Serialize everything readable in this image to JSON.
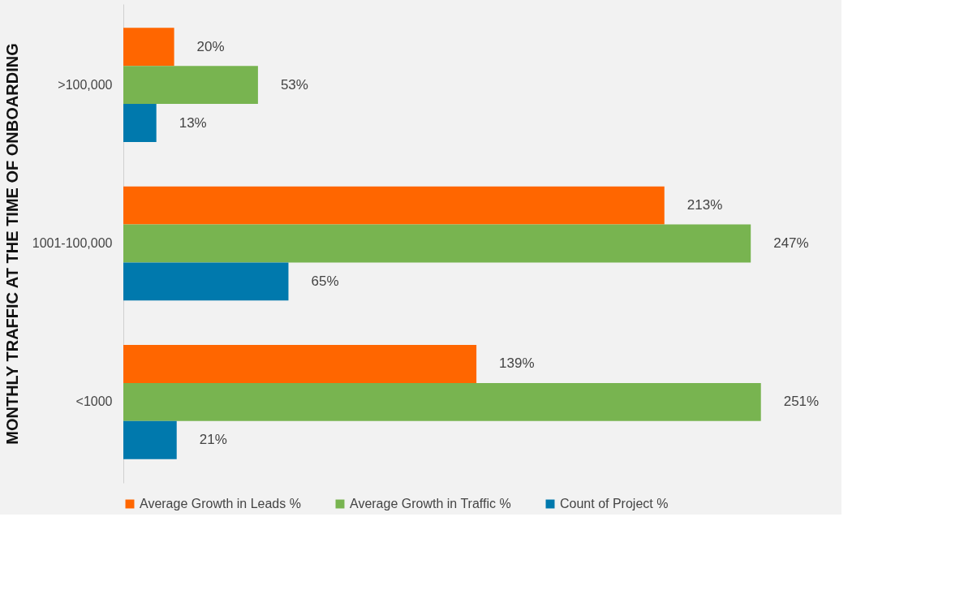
{
  "chart_data": {
    "type": "bar",
    "orientation": "horizontal",
    "ylabel": "MONTHLY TRAFFIC AT THE TIME OF ONBOARDING",
    "categories": [
      ">100,000",
      "1001-100,000",
      "<1000"
    ],
    "series": [
      {
        "name": "Average Growth in Leads %",
        "color": "#ff6600",
        "values": [
          20,
          213,
          139
        ],
        "value_labels": [
          "20%",
          "213%",
          "139%"
        ]
      },
      {
        "name": "Average Growth in Traffic %",
        "color": "#78b450",
        "values": [
          53,
          247,
          251
        ],
        "value_labels": [
          "53%",
          "247%",
          "251%"
        ]
      },
      {
        "name": "Count of Project %",
        "color": "#0079ad",
        "values": [
          13,
          65,
          21
        ],
        "value_labels": [
          "13%",
          "65%",
          "21%"
        ]
      }
    ],
    "grid": false,
    "legend": "bottom",
    "tick_labels": "y"
  }
}
